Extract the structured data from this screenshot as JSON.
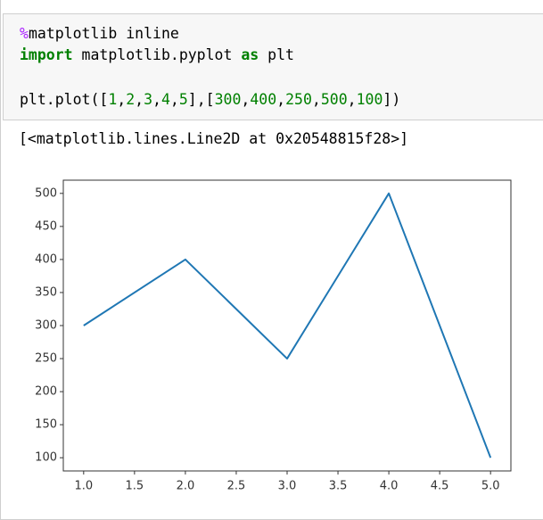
{
  "code": {
    "lines": [
      [
        "%",
        "matplotlib inline"
      ],
      [
        "import",
        " matplotlib.pyplot ",
        "as",
        " plt"
      ],
      [
        "plt.plot([",
        "1",
        ",",
        "2",
        ",",
        "3",
        ",",
        "4",
        ",",
        "5",
        "],[",
        "300",
        ",",
        "400",
        ",",
        "250",
        ",",
        "500",
        ",",
        "100",
        "])"
      ]
    ]
  },
  "output": {
    "text": "[<matplotlib.lines.Line2D at 0x20548815f28>]"
  },
  "chart_data": {
    "type": "line",
    "x": [
      1,
      2,
      3,
      4,
      5
    ],
    "values": [
      300,
      400,
      250,
      500,
      100
    ],
    "color": "#1f77b4",
    "xlim": [
      0.8,
      5.2
    ],
    "ylim": [
      80,
      520
    ],
    "xticks": [
      {
        "value": 1,
        "label": "1.0"
      },
      {
        "value": 1.5,
        "label": "1.5"
      },
      {
        "value": 2,
        "label": "2.0"
      },
      {
        "value": 2.5,
        "label": "2.5"
      },
      {
        "value": 3,
        "label": "3.0"
      },
      {
        "value": 3.5,
        "label": "3.5"
      },
      {
        "value": 4,
        "label": "4.0"
      },
      {
        "value": 4.5,
        "label": "4.5"
      },
      {
        "value": 5,
        "label": "5.0"
      }
    ],
    "yticks": [
      100,
      150,
      200,
      250,
      300,
      350,
      400,
      450,
      500
    ],
    "grid": false
  }
}
